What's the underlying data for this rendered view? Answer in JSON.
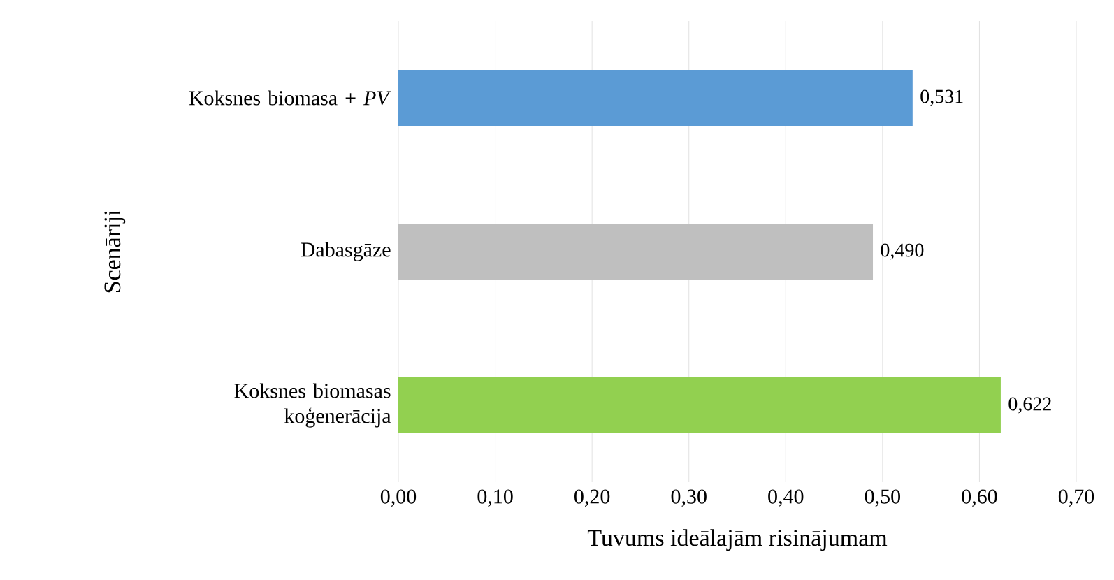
{
  "chart_data": {
    "type": "bar",
    "orientation": "horizontal",
    "categories": [
      "Koksnes biomasa + *PV*",
      "Dabasgāze",
      "Koksnes biomasas koģenerācija"
    ],
    "values": [
      0.531,
      0.49,
      0.622
    ],
    "colors": [
      "#5b9bd5",
      "#bfbfbf",
      "#92d050"
    ],
    "value_labels": [
      "0,531",
      "0,490",
      "0,622"
    ],
    "xlabel": "Tuvums ideālajām risinājumam",
    "ylabel": "Scenāriji",
    "xlim": [
      0,
      0.7
    ],
    "xticks": [
      {
        "value": 0,
        "label": "0,00"
      },
      {
        "value": 0.1,
        "label": "0,10"
      },
      {
        "value": 0.2,
        "label": "0,20"
      },
      {
        "value": 0.3,
        "label": "0,30"
      },
      {
        "value": 0.4,
        "label": "0,40"
      },
      {
        "value": 0.5,
        "label": "0,50"
      },
      {
        "value": 0.6,
        "label": "0,60"
      },
      {
        "value": 0.7,
        "label": "0,70"
      }
    ],
    "grid": "x"
  }
}
